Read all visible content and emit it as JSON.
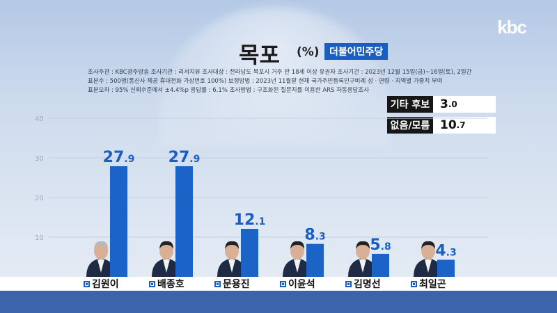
{
  "brand": {
    "logo": "kbc"
  },
  "header": {
    "title": "목포",
    "unit": "(%)",
    "party": "더불어민주당"
  },
  "survey_info": [
    "조사주관 : KBC광주방송   조사기관 : 리서치뷰   조사대상 : 전라남도 목포시 거주 만 18세 이상 유권자  조사기간 : 2023년 12월 15일(금)~16일(토), 2일간",
    "표본수 : 500명(통신사 제공 휴대전화 가상번호 100%)   보정방법 : 2023년 11월말 현재 국가주민등록인구비례 성 · 연령 · 지역별 가중치 부여",
    "표본오차 : 95% 신뢰수준에서 ±4.4%p    응답률 : 6.1%   조사방법 : 구조화된 질문지를 이용한 ARS 자동응답조사"
  ],
  "legend_boxes": [
    {
      "label": "기타 후보",
      "value_int": "3",
      "value_dec": ".0"
    },
    {
      "label": "없음/모름",
      "value_int": "10",
      "value_dec": ".7"
    }
  ],
  "colors": {
    "bar": "#1b63c6",
    "accent": "#1a5fc0",
    "band": "#3c64ad"
  },
  "chart_data": {
    "type": "bar",
    "title": "목포",
    "categories": [
      "김원이",
      "배종호",
      "문용진",
      "이윤석",
      "김명선",
      "최일곤"
    ],
    "values": [
      27.9,
      27.9,
      12.1,
      8.3,
      5.8,
      4.3
    ],
    "value_labels_int": [
      "27",
      "27",
      "12",
      "8",
      "5",
      "4"
    ],
    "value_labels_dec": [
      ".9",
      ".9",
      ".1",
      ".3",
      ".8",
      ".3"
    ],
    "yticks": [
      "10",
      "20",
      "30",
      "40"
    ],
    "ylim": [
      0,
      40
    ],
    "grid": true,
    "legend": "top-right"
  }
}
